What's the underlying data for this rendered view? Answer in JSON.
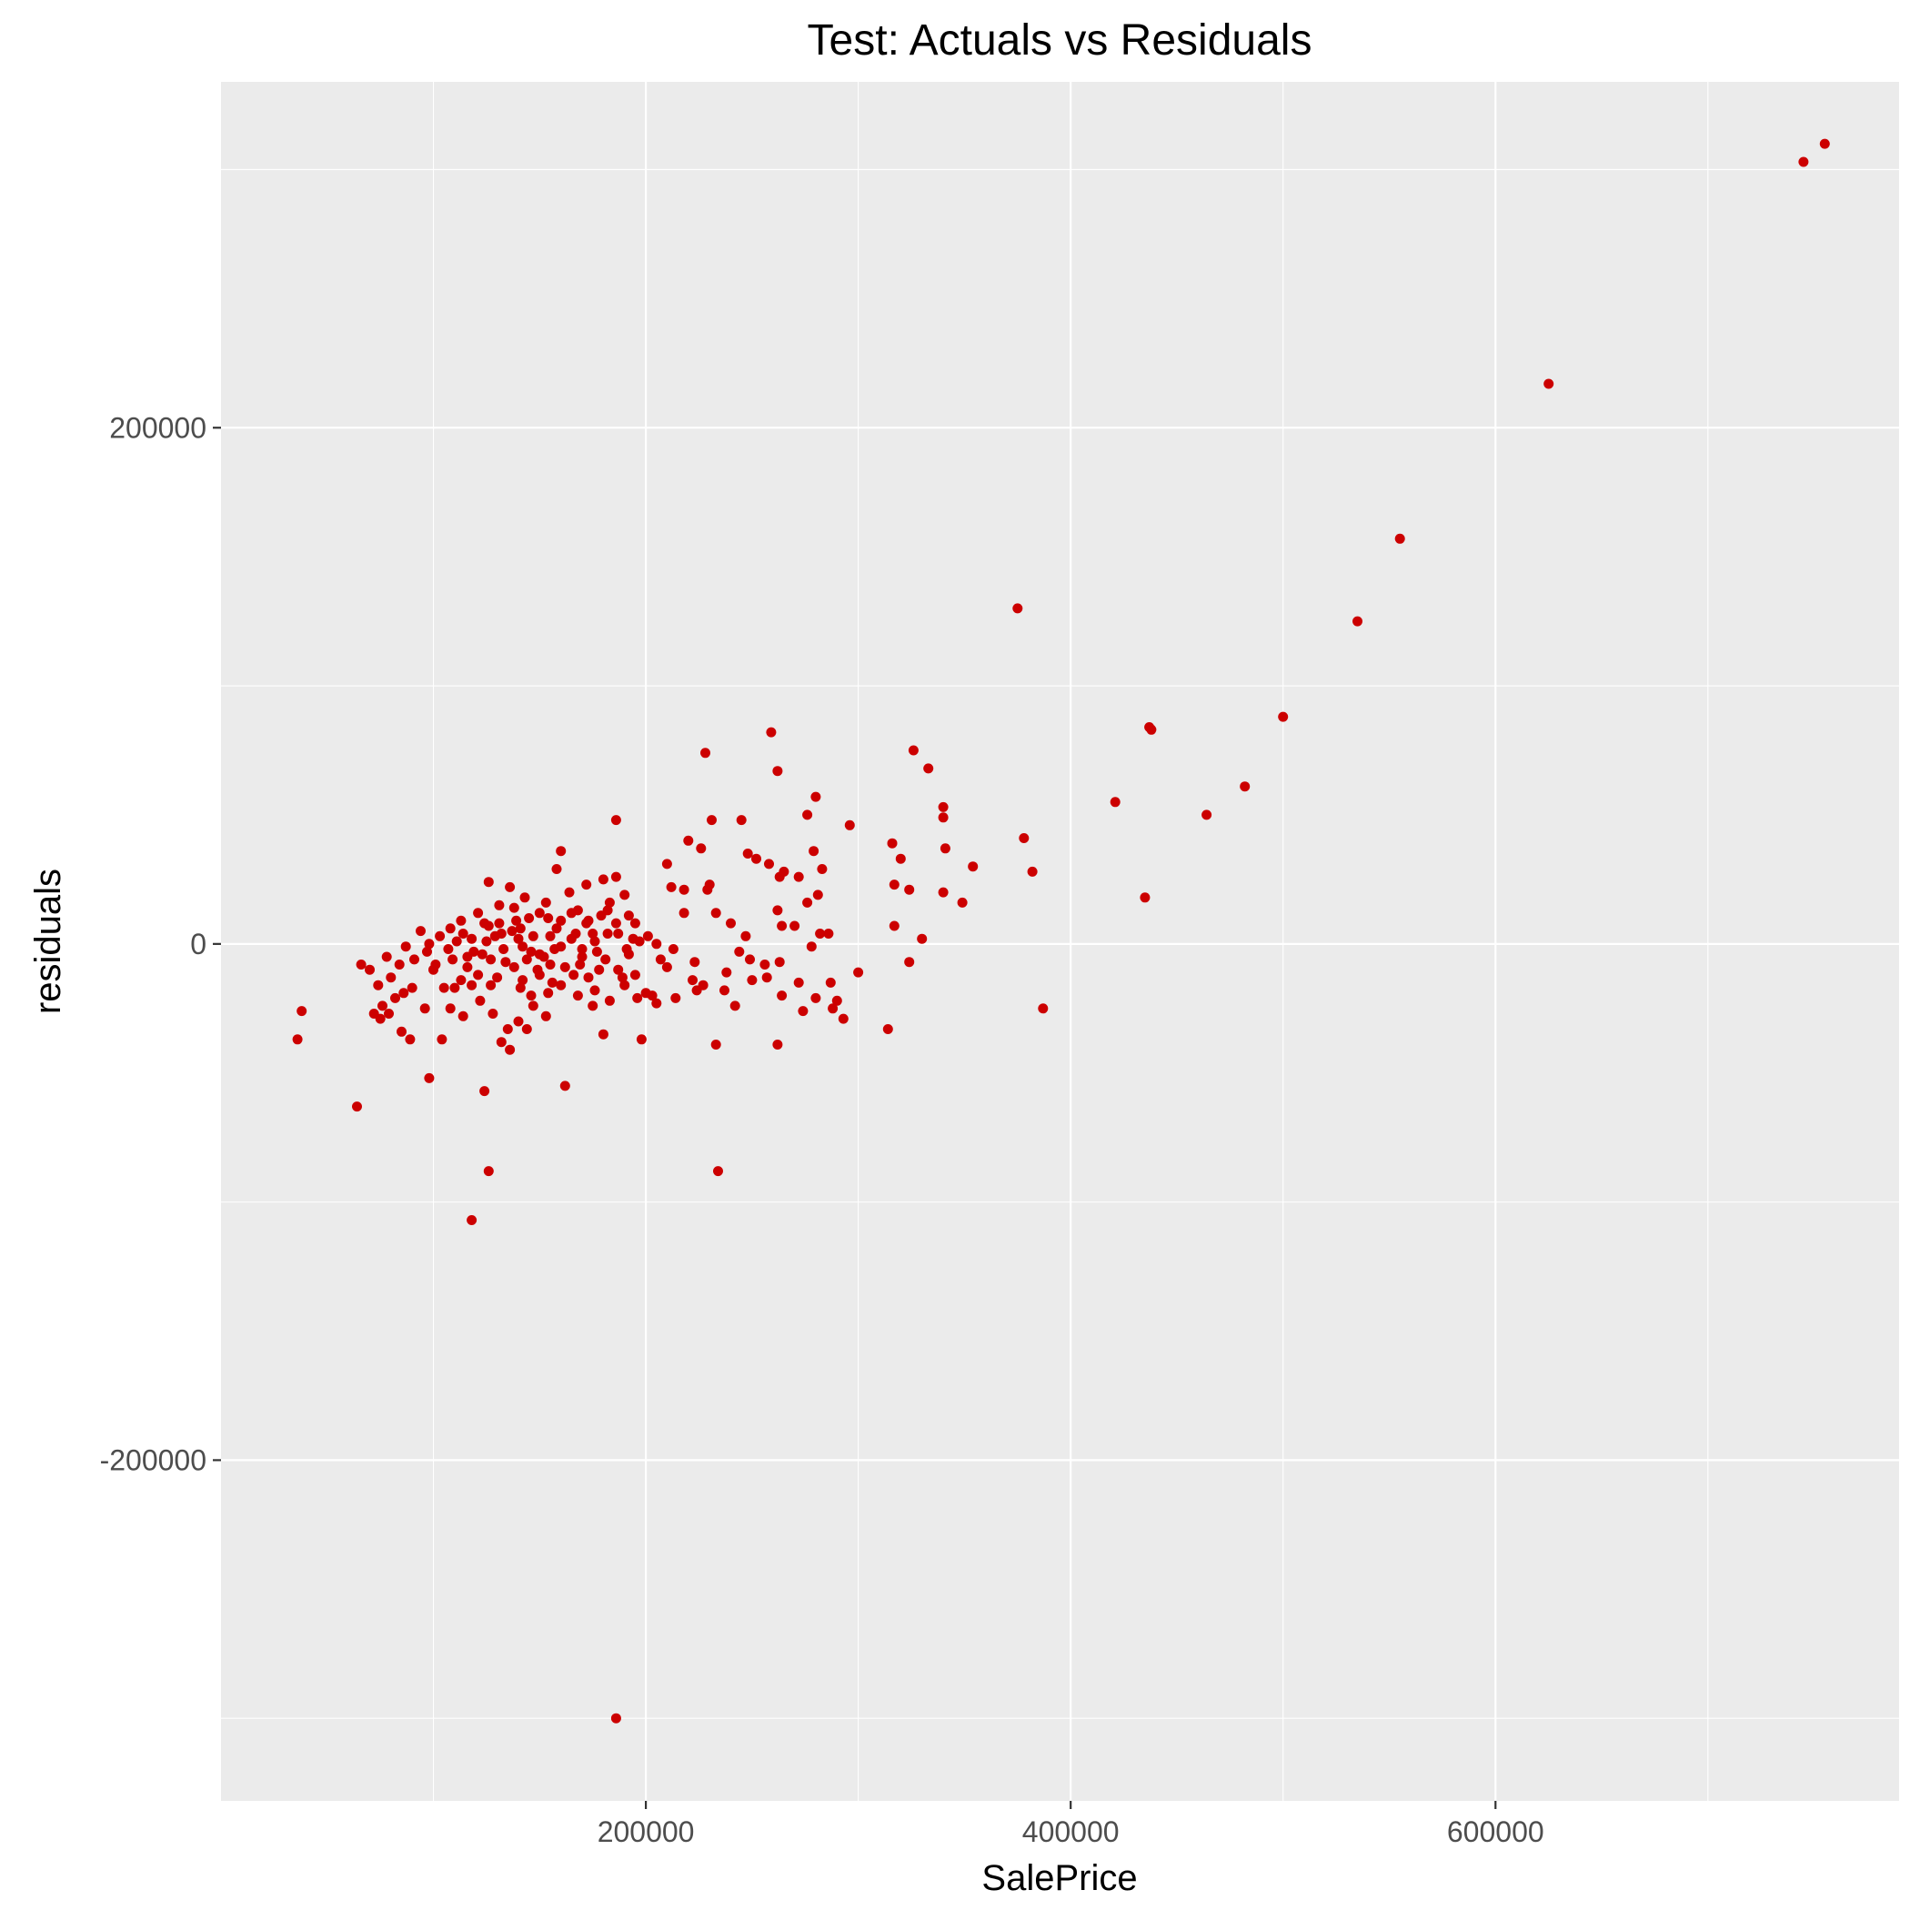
{
  "chart_data": {
    "type": "scatter",
    "title": "Test: Actuals vs Residuals",
    "xlabel": "SalePrice",
    "ylabel": "residuals",
    "xlim": [
      0,
      790000
    ],
    "ylim": [
      -332000,
      334000
    ],
    "x_ticks": [
      200000,
      400000,
      600000
    ],
    "y_ticks": [
      -200000,
      0,
      200000
    ],
    "x_tick_labels": [
      "200000",
      "400000",
      "600000"
    ],
    "y_tick_labels": [
      "-200000",
      "0",
      "200000"
    ],
    "x_minor": [
      100000,
      300000,
      500000,
      700000
    ],
    "y_minor": [
      -300000,
      -100000,
      100000,
      300000
    ],
    "grid": true,
    "panel_color": "#ebebeb",
    "point_color": "#cc0000",
    "series": [
      {
        "points": [
          [
            745000,
            303000
          ],
          [
            755000,
            310000
          ],
          [
            625000,
            217000
          ],
          [
            555000,
            157000
          ],
          [
            535000,
            125000
          ],
          [
            500000,
            88000
          ],
          [
            438000,
            83000
          ],
          [
            437000,
            84000
          ],
          [
            482000,
            61000
          ],
          [
            464000,
            50000
          ],
          [
            421000,
            55000
          ],
          [
            435000,
            18000
          ],
          [
            375000,
            130000
          ],
          [
            378000,
            41000
          ],
          [
            382000,
            28000
          ],
          [
            387000,
            -25000
          ],
          [
            326000,
            75000
          ],
          [
            333000,
            68000
          ],
          [
            340000,
            53000
          ],
          [
            340000,
            49000
          ],
          [
            341000,
            37000
          ],
          [
            354000,
            30000
          ],
          [
            349000,
            16000
          ],
          [
            340000,
            20000
          ],
          [
            330000,
            2000
          ],
          [
            324000,
            -7000
          ],
          [
            316000,
            39000
          ],
          [
            320000,
            33000
          ],
          [
            324000,
            21000
          ],
          [
            317000,
            7000
          ],
          [
            314000,
            -33000
          ],
          [
            317000,
            23000
          ],
          [
            259000,
            82000
          ],
          [
            262000,
            67000
          ],
          [
            228000,
            74000
          ],
          [
            280000,
            57000
          ],
          [
            276000,
            50000
          ],
          [
            296000,
            46000
          ],
          [
            283000,
            29000
          ],
          [
            231000,
            48000
          ],
          [
            245000,
            48000
          ],
          [
            220000,
            40000
          ],
          [
            226000,
            37000
          ],
          [
            252000,
            33000
          ],
          [
            258000,
            31000
          ],
          [
            265000,
            28000
          ],
          [
            279000,
            36000
          ],
          [
            272000,
            26000
          ],
          [
            276000,
            16000
          ],
          [
            281000,
            19000
          ],
          [
            263000,
            26000
          ],
          [
            248000,
            35000
          ],
          [
            186000,
            48000
          ],
          [
            210000,
            31000
          ],
          [
            229000,
            21000
          ],
          [
            230000,
            23000
          ],
          [
            233000,
            12000
          ],
          [
            212000,
            22000
          ],
          [
            218000,
            21000
          ],
          [
            218000,
            12000
          ],
          [
            240000,
            8000
          ],
          [
            247000,
            3000
          ],
          [
            262000,
            13000
          ],
          [
            264000,
            7000
          ],
          [
            270000,
            7000
          ],
          [
            282000,
            4000
          ],
          [
            286000,
            4000
          ],
          [
            278000,
            -1000
          ],
          [
            244000,
            -3000
          ],
          [
            249000,
            -6000
          ],
          [
            256000,
            -8000
          ],
          [
            263000,
            -7000
          ],
          [
            238000,
            -11000
          ],
          [
            250000,
            -14000
          ],
          [
            257000,
            -13000
          ],
          [
            264000,
            -20000
          ],
          [
            237000,
            -18000
          ],
          [
            274000,
            -26000
          ],
          [
            272000,
            -15000
          ],
          [
            280000,
            -21000
          ],
          [
            287000,
            -15000
          ],
          [
            290000,
            -22000
          ],
          [
            300000,
            -11000
          ],
          [
            293000,
            -29000
          ],
          [
            288000,
            -25000
          ],
          [
            242000,
            -24000
          ],
          [
            233000,
            -39000
          ],
          [
            234000,
            -88000
          ],
          [
            262000,
            -39000
          ],
          [
            214000,
            -21000
          ],
          [
            224000,
            -18000
          ],
          [
            200000,
            -19000
          ],
          [
            203000,
            -20000
          ],
          [
            198000,
            -37000
          ],
          [
            205000,
            -23000
          ],
          [
            196000,
            -21000
          ],
          [
            223000,
            -7000
          ],
          [
            222000,
            -14000
          ],
          [
            227000,
            -16000
          ],
          [
            207000,
            -6000
          ],
          [
            210000,
            -9000
          ],
          [
            213000,
            -2000
          ],
          [
            201000,
            3000
          ],
          [
            205000,
            0
          ],
          [
            195000,
            8000
          ],
          [
            182000,
            4000
          ],
          [
            191000,
            -2000
          ],
          [
            178000,
            -10000
          ],
          [
            170000,
            -5000
          ],
          [
            175000,
            4000
          ],
          [
            173000,
            9000
          ],
          [
            168000,
            13000
          ],
          [
            165000,
            2000
          ],
          [
            160000,
            -1000
          ],
          [
            158000,
            6000
          ],
          [
            155000,
            -8000
          ],
          [
            150000,
            -12000
          ],
          [
            146000,
            -3000
          ],
          [
            141000,
            6000
          ],
          [
            138000,
            14000
          ],
          [
            143000,
            18000
          ],
          [
            150000,
            12000
          ],
          [
            153000,
            16000
          ],
          [
            158000,
            29000
          ],
          [
            160000,
            36000
          ],
          [
            164000,
            20000
          ],
          [
            172000,
            23000
          ],
          [
            180000,
            25000
          ],
          [
            186000,
            26000
          ],
          [
            190000,
            19000
          ],
          [
            183000,
            16000
          ],
          [
            173000,
            -13000
          ],
          [
            168000,
            -20000
          ],
          [
            160000,
            -16000
          ],
          [
            154000,
            -19000
          ],
          [
            147000,
            -24000
          ],
          [
            140000,
            -30000
          ],
          [
            135000,
            -33000
          ],
          [
            132000,
            -38000
          ],
          [
            144000,
            -33000
          ],
          [
            153000,
            -28000
          ],
          [
            162000,
            -55000
          ],
          [
            175000,
            -24000
          ],
          [
            180000,
            -35000
          ],
          [
            183000,
            -22000
          ],
          [
            190000,
            -16000
          ],
          [
            195000,
            -12000
          ],
          [
            186000,
            -300000
          ],
          [
            128000,
            -27000
          ],
          [
            122000,
            -22000
          ],
          [
            118000,
            -16000
          ],
          [
            113000,
            -14000
          ],
          [
            108000,
            -25000
          ],
          [
            105000,
            -17000
          ],
          [
            100000,
            -10000
          ],
          [
            98000,
            0
          ],
          [
            103000,
            3000
          ],
          [
            108000,
            6000
          ],
          [
            113000,
            9000
          ],
          [
            118000,
            2000
          ],
          [
            123000,
            -4000
          ],
          [
            126000,
            7000
          ],
          [
            131000,
            15000
          ],
          [
            126000,
            24000
          ],
          [
            131000,
            8000
          ],
          [
            136000,
            22000
          ],
          [
            140000,
            2000
          ],
          [
            145000,
            10000
          ],
          [
            124000,
            -57000
          ],
          [
            118000,
            -107000
          ],
          [
            126000,
            -88000
          ],
          [
            98000,
            -52000
          ],
          [
            96000,
            -25000
          ],
          [
            90000,
            -17000
          ],
          [
            85000,
            -34000
          ],
          [
            89000,
            -37000
          ],
          [
            80000,
            -13000
          ],
          [
            78000,
            -5000
          ],
          [
            84000,
            -8000
          ],
          [
            87000,
            -1000
          ],
          [
            75000,
            -29000
          ],
          [
            74000,
            -16000
          ],
          [
            76000,
            -24000
          ],
          [
            72000,
            -27000
          ],
          [
            70000,
            -10000
          ],
          [
            66000,
            -8000
          ],
          [
            64000,
            -63000
          ],
          [
            38000,
            -26000
          ],
          [
            36000,
            -37000
          ],
          [
            114000,
            -28000
          ],
          [
            104000,
            -37000
          ],
          [
            110000,
            -17000
          ],
          [
            116000,
            -9000
          ],
          [
            121000,
            -12000
          ],
          [
            127000,
            -6000
          ],
          [
            133000,
            -2000
          ],
          [
            138000,
            -9000
          ],
          [
            142000,
            -14000
          ],
          [
            146000,
            -20000
          ],
          [
            150000,
            -4000
          ],
          [
            155000,
            3000
          ],
          [
            160000,
            9000
          ],
          [
            165000,
            12000
          ],
          [
            170000,
            -2000
          ],
          [
            176000,
            1000
          ],
          [
            181000,
            -6000
          ],
          [
            187000,
            4000
          ],
          [
            192000,
            11000
          ],
          [
            136000,
            -41000
          ],
          [
            144000,
            -6000
          ],
          [
            130000,
            -13000
          ],
          [
            125000,
            1000
          ],
          [
            121000,
            12000
          ],
          [
            116000,
            -5000
          ],
          [
            111000,
            1000
          ],
          [
            107000,
            -2000
          ],
          [
            101000,
            -8000
          ],
          [
            94000,
            5000
          ],
          [
            97000,
            -3000
          ],
          [
            91000,
            -6000
          ],
          [
            86000,
            -19000
          ],
          [
            82000,
            -21000
          ],
          [
            79000,
            -27000
          ],
          [
            132000,
            4000
          ],
          [
            137000,
            5000
          ],
          [
            142000,
            -1000
          ],
          [
            147000,
            3000
          ],
          [
            152000,
            -5000
          ],
          [
            157000,
            -2000
          ],
          [
            162000,
            -9000
          ],
          [
            167000,
            4000
          ],
          [
            172000,
            8000
          ],
          [
            177000,
            -3000
          ],
          [
            182000,
            13000
          ],
          [
            187000,
            -10000
          ],
          [
            192000,
            -4000
          ],
          [
            197000,
            1000
          ],
          [
            186000,
            8000
          ],
          [
            129000,
            3000
          ],
          [
            134000,
            -7000
          ],
          [
            139000,
            9000
          ],
          [
            149000,
            -10000
          ],
          [
            154000,
            10000
          ],
          [
            169000,
            -8000
          ],
          [
            179000,
            11000
          ],
          [
            189000,
            -13000
          ],
          [
            194000,
            2000
          ],
          [
            119000,
            -3000
          ],
          [
            124000,
            8000
          ],
          [
            114000,
            4000
          ],
          [
            109000,
            -6000
          ],
          [
            127000,
            -16000
          ],
          [
            141000,
            -17000
          ],
          [
            156000,
            -15000
          ],
          [
            166000,
            -12000
          ],
          [
            176000,
            -18000
          ]
        ]
      }
    ]
  }
}
